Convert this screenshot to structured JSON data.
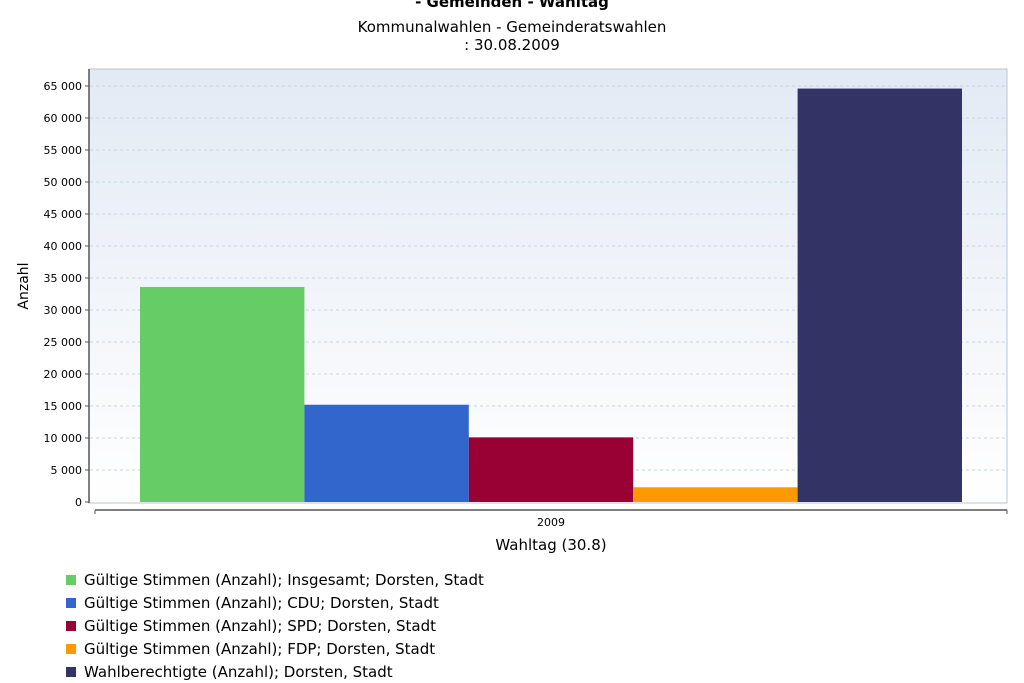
{
  "header": {
    "title": "- Gemeinden - Wahltag",
    "subtitle_line1": "Kommunalwahlen - Gemeinderatswahlen",
    "subtitle_line2": ": 30.08.2009"
  },
  "chart_data": {
    "type": "bar",
    "title": "- Gemeinden - Wahltag",
    "subtitle": "Kommunalwahlen - Gemeinderatswahlen : 30.08.2009",
    "categories": [
      "2009"
    ],
    "xlabel": "Wahltag (30.8)",
    "ylabel": "Anzahl",
    "ylim": [
      0,
      68000
    ],
    "yticks": [
      0,
      5000,
      10000,
      15000,
      20000,
      25000,
      30000,
      35000,
      40000,
      45000,
      50000,
      55000,
      60000,
      65000
    ],
    "ytick_labels": [
      "0",
      "5 000",
      "10 000",
      "15 000",
      "20 000",
      "25 000",
      "30 000",
      "35 000",
      "40 000",
      "45 000",
      "50 000",
      "55 000",
      "60 000",
      "65 000"
    ],
    "grid": true,
    "legend_position": "bottom-left",
    "series": [
      {
        "name": "Gültige Stimmen (Anzahl); Insgesamt; Dorsten, Stadt",
        "values": [
          33600
        ],
        "color": "#66cc66"
      },
      {
        "name": "Gültige Stimmen (Anzahl); CDU; Dorsten, Stadt",
        "values": [
          15200
        ],
        "color": "#3366cc"
      },
      {
        "name": "Gültige Stimmen (Anzahl); SPD; Dorsten, Stadt",
        "values": [
          10100
        ],
        "color": "#990033"
      },
      {
        "name": "Gültige Stimmen (Anzahl); FDP; Dorsten, Stadt",
        "values": [
          2300
        ],
        "color": "#ff9900"
      },
      {
        "name": "Wahlberechtigte (Anzahl); Dorsten, Stadt",
        "values": [
          64600
        ],
        "color": "#333366"
      }
    ]
  }
}
